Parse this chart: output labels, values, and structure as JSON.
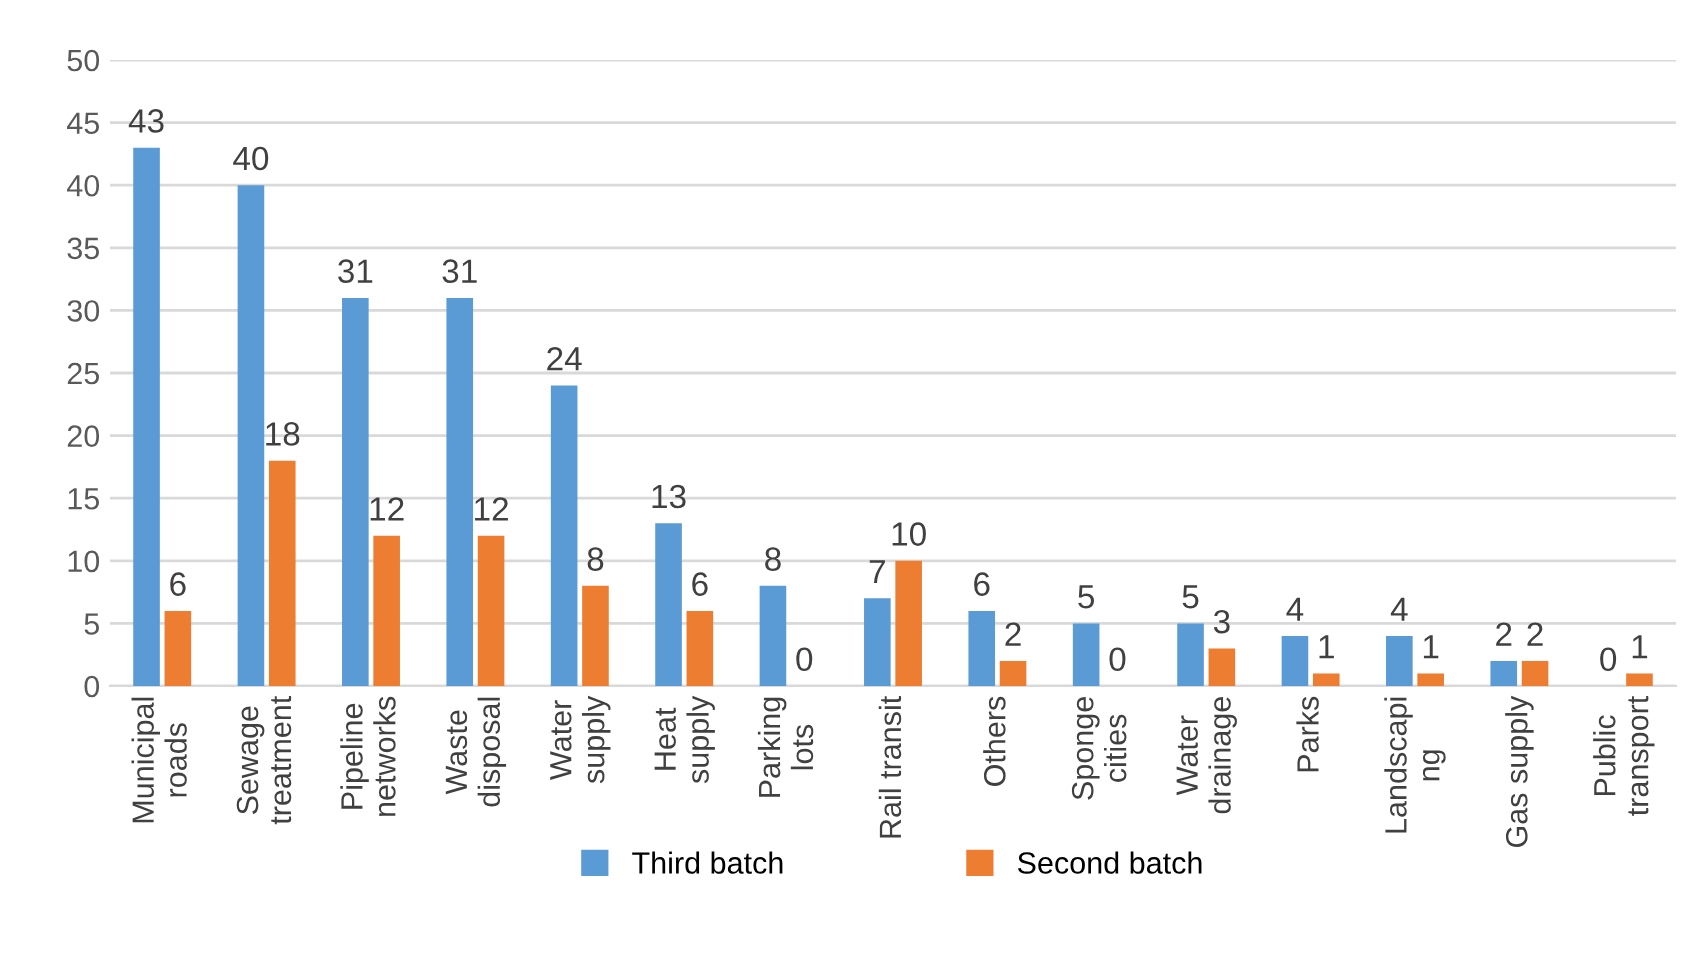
{
  "chart_data": {
    "type": "bar",
    "categories": [
      "Municipal\nroads",
      "Sewage\ntreatment",
      "Pipeline\nnetworks",
      "Waste\ndisposal",
      "Water\nsupply",
      "Heat\nsupply",
      "Parking\nlots",
      "Rail transit",
      "Others",
      "Sponge\ncities",
      "Water\ndrainage",
      "Parks",
      "Landscapi\nng",
      "Gas supply",
      "Public\ntransport"
    ],
    "series": [
      {
        "name": "Third batch",
        "color": "#5b9bd5",
        "values": [
          43,
          40,
          31,
          31,
          24,
          13,
          8,
          7,
          6,
          5,
          5,
          4,
          4,
          2,
          0
        ]
      },
      {
        "name": "Second batch",
        "color": "#ed7d31",
        "values": [
          6,
          18,
          12,
          12,
          8,
          6,
          0,
          10,
          2,
          0,
          3,
          1,
          1,
          2,
          1
        ]
      }
    ],
    "ylim": [
      0,
      50
    ],
    "yticks": [
      0,
      5,
      10,
      15,
      20,
      25,
      30,
      35,
      40,
      45,
      50
    ],
    "grid": "y",
    "legend": "bottom",
    "data_labels": true
  }
}
